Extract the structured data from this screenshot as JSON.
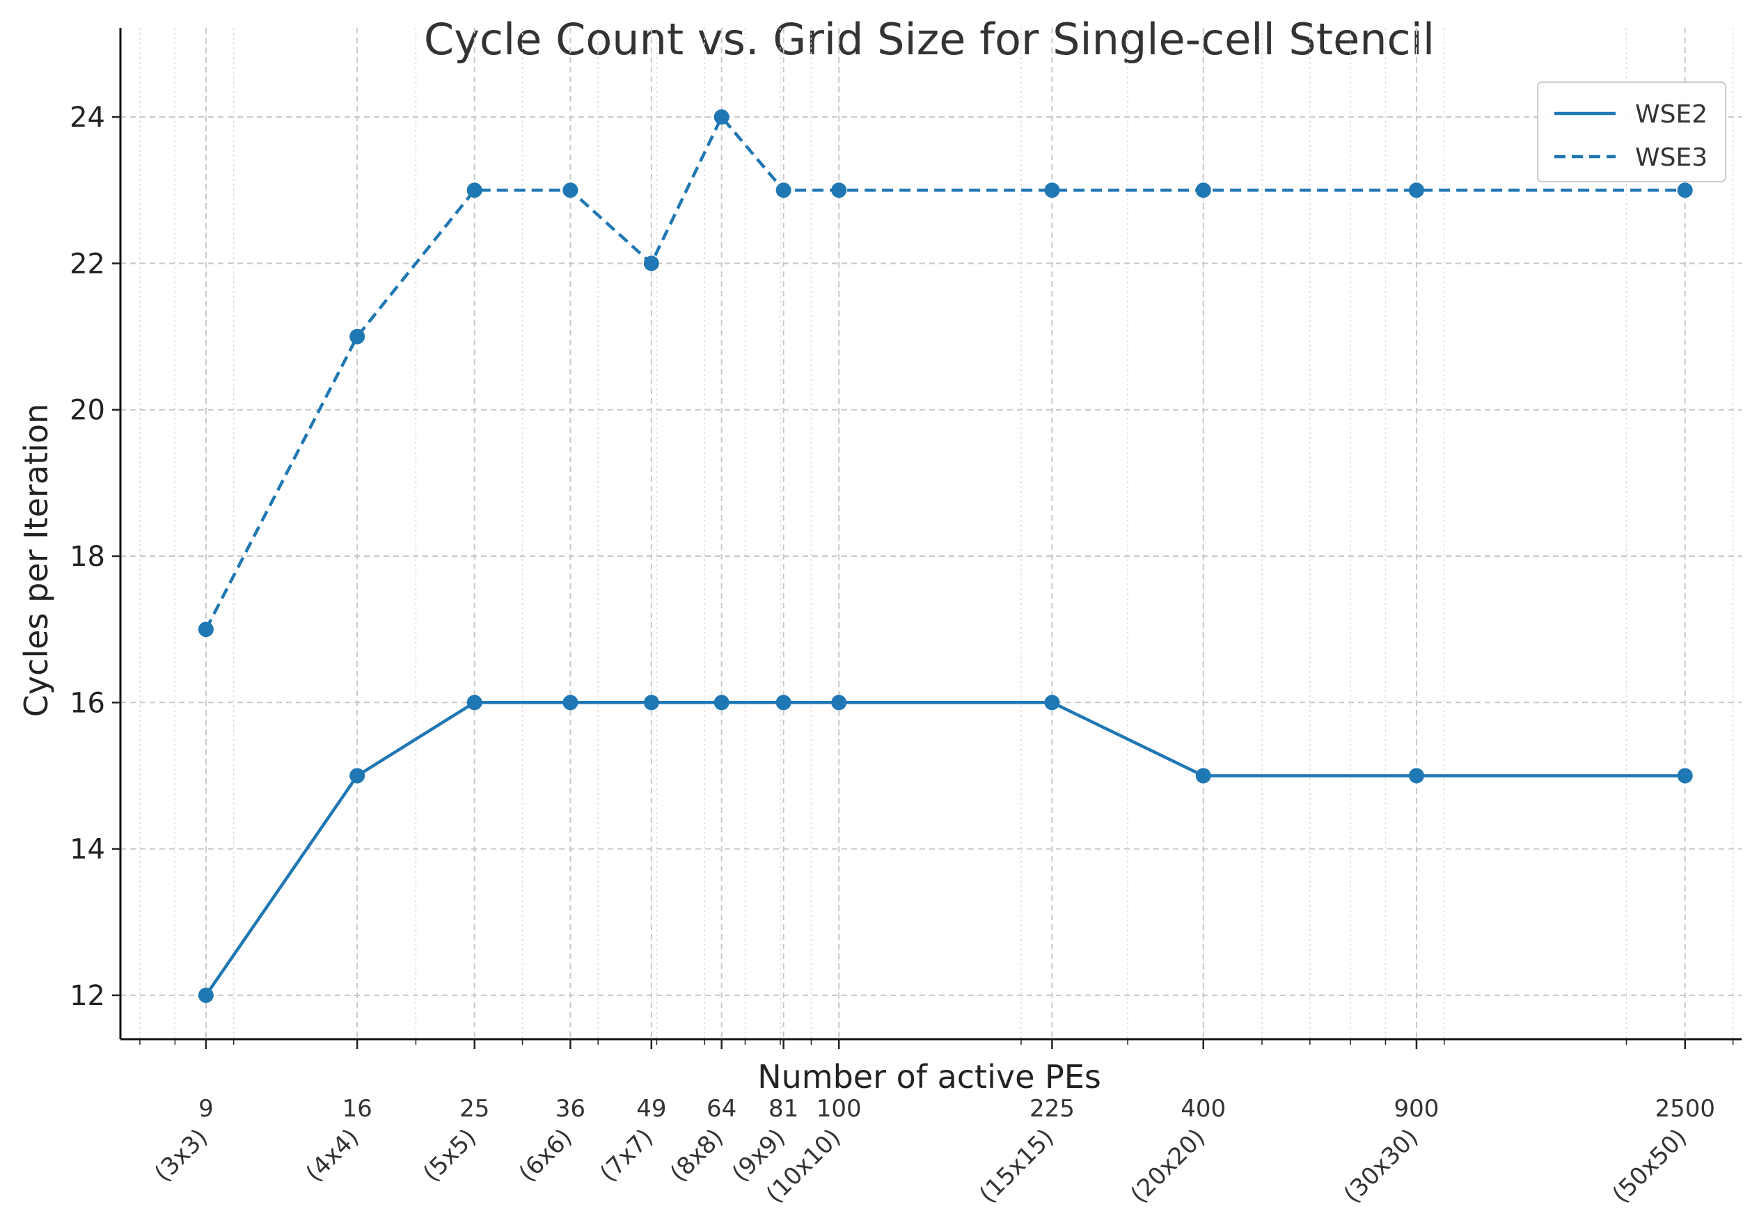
{
  "chart_data": {
    "type": "line",
    "title": "Cycle Count vs. Grid Size for Single-cell Stencil",
    "xlabel": "Number of active PEs",
    "ylabel": "Cycles per Iteration",
    "x_scale": "log",
    "x": [
      9,
      16,
      25,
      36,
      49,
      64,
      81,
      100,
      225,
      400,
      900,
      2500
    ],
    "x_tick_labels": [
      "9",
      "16",
      "25",
      "36",
      "49",
      "64",
      "81",
      "100",
      "225",
      "400",
      "900",
      "2500"
    ],
    "x_tick_sublabels": [
      "(3x3)",
      "(4x4)",
      "(5x5)",
      "(6x6)",
      "(7x7)",
      "(8x8)",
      "(9x9)",
      "(10x10)",
      "(15x15)",
      "(20x20)",
      "(30x30)",
      "(50x50)"
    ],
    "y_ticks": [
      12,
      14,
      16,
      18,
      20,
      22,
      24
    ],
    "ylim": [
      11.4,
      24.6
    ],
    "grid": true,
    "legend_position": "top-right",
    "series": [
      {
        "name": "WSE2",
        "style": "solid",
        "color": "#1f77b4",
        "values": [
          12,
          15,
          16,
          16,
          16,
          16,
          16,
          16,
          16,
          15,
          15,
          15
        ]
      },
      {
        "name": "WSE3",
        "style": "dashed",
        "color": "#1f77b4",
        "values": [
          17,
          21,
          23,
          23,
          22,
          24,
          23,
          23,
          23,
          23,
          23,
          23
        ]
      }
    ]
  }
}
